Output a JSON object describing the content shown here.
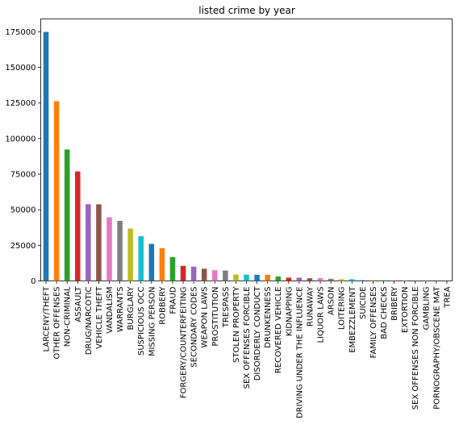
{
  "chart_data": {
    "type": "bar",
    "title": "listed crime by year",
    "xlabel": "",
    "ylabel": "",
    "ylim": [
      0,
      184000
    ],
    "yticks": [
      0,
      25000,
      50000,
      75000,
      100000,
      125000,
      150000,
      175000
    ],
    "grid": false,
    "legend": "none",
    "categories": [
      "LARCENY/THEFT",
      "OTHER OFFENSES",
      "NON-CRIMINAL",
      "ASSAULT",
      "DRUG/NARCOTIC",
      "VEHICLE THEFT",
      "VANDALISM",
      "WARRANTS",
      "BURGLARY",
      "SUSPICIOUS OCC",
      "MISSING PERSON",
      "ROBBERY",
      "FRAUD",
      "FORGERY/COUNTERFEITING",
      "SECONDARY CODES",
      "WEAPON LAWS",
      "PROSTITUTION",
      "TRESPASS",
      "STOLEN PROPERTY",
      "SEX OFFENSES FORCIBLE",
      "DISORDERLY CONDUCT",
      "DRUNKENNESS",
      "RECOVERED VEHICLE",
      "KIDNAPPING",
      "DRIVING UNDER THE INFLUENCE",
      "RUNAWAY",
      "LIQUOR LAWS",
      "ARSON",
      "LOITERING",
      "EMBEZZLEMENT",
      "SUICIDE",
      "FAMILY OFFENSES",
      "BAD CHECKS",
      "BRIBERY",
      "EXTORTION",
      "SEX OFFENSES NON FORCIBLE",
      "GAMBLING",
      "PORNOGRAPHY/OBSCENE MAT",
      "TREA"
    ],
    "values": [
      174900,
      126200,
      92300,
      76900,
      53900,
      53800,
      44700,
      42200,
      36800,
      31400,
      26000,
      23000,
      16700,
      10600,
      10000,
      8600,
      7500,
      7300,
      4500,
      4400,
      4300,
      4300,
      3100,
      2300,
      2300,
      1900,
      1900,
      1500,
      1200,
      1200,
      500,
      490,
      400,
      290,
      260,
      150,
      150,
      20,
      6
    ],
    "colors": [
      "#1f77b4",
      "#ff7f0e",
      "#2ca02c",
      "#d62728",
      "#9467bd",
      "#8c564b",
      "#e377c2",
      "#7f7f7f",
      "#bcbd22",
      "#17becf"
    ]
  }
}
